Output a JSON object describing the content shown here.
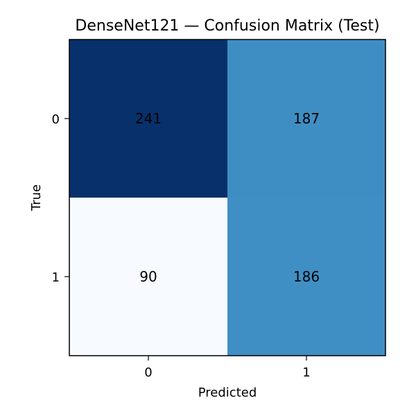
{
  "chart_data": {
    "type": "heatmap",
    "title": "DenseNet121 — Confusion Matrix (Test)",
    "xlabel": "Predicted",
    "ylabel": "True",
    "x_categories": [
      "0",
      "1"
    ],
    "y_categories": [
      "0",
      "1"
    ],
    "values": [
      [
        241,
        187
      ],
      [
        90,
        186
      ]
    ],
    "colormap": "Blues",
    "cell_colors": [
      [
        "#08306b",
        "#3e8ec4"
      ],
      [
        "#f7fbff",
        "#3f8fc5"
      ]
    ],
    "text_color": "#000000",
    "grid": false
  }
}
